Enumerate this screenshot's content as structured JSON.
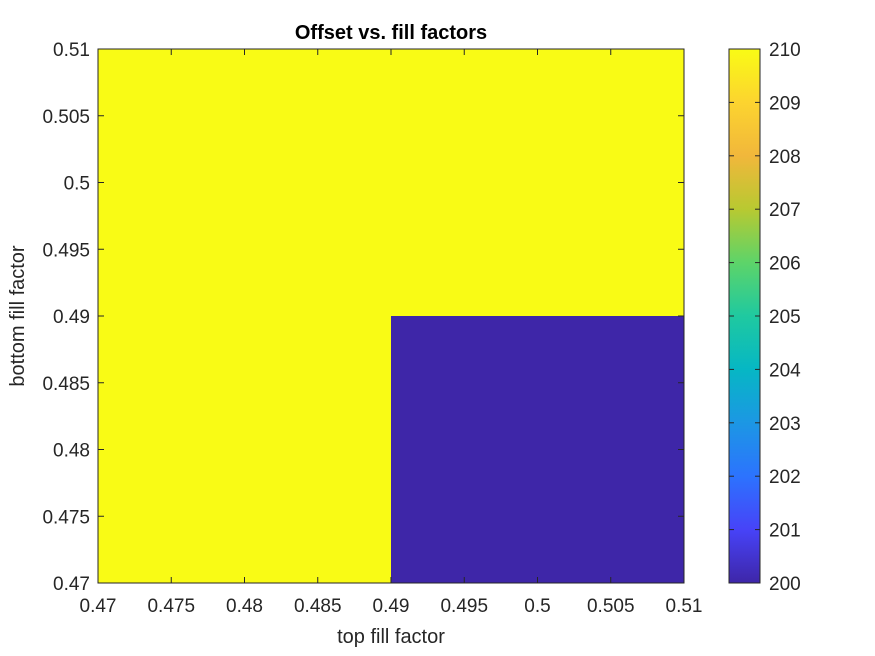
{
  "chart_data": {
    "type": "heatmap",
    "title": "Offset vs. fill factors",
    "xlabel": "top fill factor",
    "ylabel": "bottom fill factor",
    "xlim": [
      0.47,
      0.51
    ],
    "ylim": [
      0.47,
      0.51
    ],
    "x_ticks": [
      "0.47",
      "0.475",
      "0.48",
      "0.485",
      "0.49",
      "0.495",
      "0.5",
      "0.505",
      "0.51"
    ],
    "y_ticks": [
      "0.47",
      "0.475",
      "0.48",
      "0.485",
      "0.49",
      "0.495",
      "0.5",
      "0.505",
      "0.51"
    ],
    "x_edges": [
      0.47,
      0.49,
      0.51
    ],
    "y_edges": [
      0.47,
      0.49,
      0.51
    ],
    "values": [
      [
        210,
        200
      ],
      [
        210,
        210
      ]
    ],
    "values_layout": "rows bottom-to-top, columns left-to-right",
    "colorbar": {
      "limits": [
        200,
        210
      ],
      "ticks": [
        "200",
        "201",
        "202",
        "203",
        "204",
        "205",
        "206",
        "207",
        "208",
        "209",
        "210"
      ],
      "colormap": "parula",
      "colors": [
        "#3e26a8",
        "#4743f8",
        "#2c73fe",
        "#1c97e4",
        "#06b7c4",
        "#1fc9a0",
        "#5dd469",
        "#b8c931",
        "#f1b73b",
        "#fcd42f",
        "#f9fb15"
      ]
    },
    "grid": false
  }
}
